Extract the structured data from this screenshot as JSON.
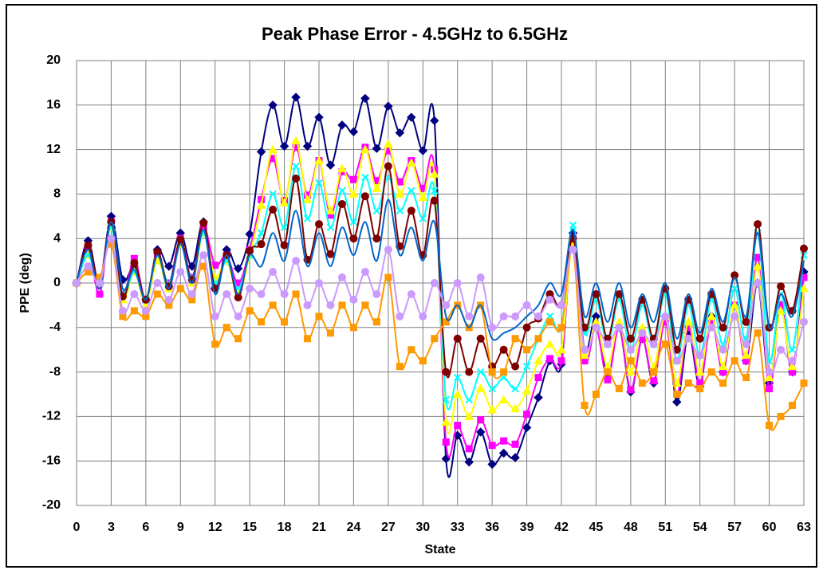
{
  "chart_data": {
    "type": "line",
    "title": "Peak Phase Error - 4.5GHz to 6.5GHz",
    "x_label": "State",
    "y_label": "PPE (deg)",
    "x": [
      0,
      1,
      2,
      3,
      4,
      5,
      6,
      7,
      8,
      9,
      10,
      11,
      12,
      13,
      14,
      15,
      16,
      17,
      18,
      19,
      20,
      21,
      22,
      23,
      24,
      25,
      26,
      27,
      28,
      29,
      30,
      31,
      32,
      33,
      34,
      35,
      36,
      37,
      38,
      39,
      40,
      41,
      42,
      43,
      44,
      45,
      46,
      47,
      48,
      49,
      50,
      51,
      52,
      53,
      54,
      55,
      56,
      57,
      58,
      59,
      60,
      61,
      62,
      63
    ],
    "xlim": [
      0,
      63
    ],
    "xticks": [
      0,
      3,
      6,
      9,
      12,
      15,
      18,
      21,
      24,
      27,
      30,
      33,
      36,
      39,
      42,
      45,
      48,
      51,
      54,
      57,
      60,
      63
    ],
    "ylim": [
      -20,
      20
    ],
    "yticks": [
      -20,
      -16,
      -12,
      -8,
      -4,
      0,
      4,
      8,
      12,
      16,
      20
    ],
    "grid": true,
    "series": [
      {
        "color": "#000080",
        "marker": "diamond",
        "values": [
          0,
          3.8,
          0,
          6,
          0.3,
          1.5,
          -1.5,
          3,
          1.5,
          4.5,
          1.5,
          5.5,
          -0.5,
          3,
          1.3,
          4.4,
          11.8,
          16,
          12.3,
          16.7,
          12.3,
          14.9,
          10.6,
          14.2,
          13.6,
          16.6,
          12.1,
          15.9,
          13.5,
          14.9,
          11.9,
          14.6,
          -15.8,
          -13.7,
          -16.1,
          -13.4,
          -16.3,
          -15.3,
          -15.7,
          -13,
          -10.3,
          -7,
          -7.3,
          4.5,
          -6,
          -3,
          -8.5,
          -4,
          -9.8,
          -5,
          -9,
          -3,
          -10.7,
          -4.5,
          -9.3,
          -3,
          -8,
          -2,
          -7,
          0,
          -9,
          -2,
          -8,
          1
        ]
      },
      {
        "color": "#ff00ff",
        "marker": "square",
        "values": [
          0,
          3,
          -1,
          5.5,
          -1,
          2.2,
          -1.5,
          2.5,
          0,
          4,
          0.5,
          5,
          1.6,
          2.5,
          0,
          3,
          7.5,
          11.2,
          7.4,
          12.2,
          7.9,
          11,
          6.1,
          10,
          9.3,
          12.2,
          9.2,
          11.9,
          9.1,
          11,
          8.5,
          10.2,
          -14.3,
          -12.8,
          -14.9,
          -12.3,
          -14.6,
          -14.2,
          -14.5,
          -11.8,
          -8.5,
          -6.8,
          -7,
          4,
          -7,
          -4,
          -8.7,
          -4,
          -9.6,
          -5,
          -8.8,
          -3.5,
          -10,
          -4,
          -9,
          -3.5,
          -8,
          -2,
          -7,
          2.3,
          -9.5,
          -2,
          -8,
          0.5
        ]
      },
      {
        "color": "#ffff00",
        "marker": "triangle",
        "values": [
          0,
          2.5,
          0,
          5,
          -1.5,
          1,
          -2,
          2,
          -0.5,
          3.5,
          0,
          4.5,
          0.5,
          2,
          -1,
          2.5,
          7,
          12,
          7.2,
          12.8,
          7.5,
          11,
          6.5,
          10.3,
          8,
          12,
          8.5,
          12.5,
          8,
          10.8,
          7.7,
          9.8,
          -12.5,
          -10,
          -12,
          -9.5,
          -11.4,
          -10.5,
          -11.3,
          -9.7,
          -7,
          -5.5,
          -6,
          3.5,
          -6.5,
          -3.5,
          -7.5,
          -3.5,
          -8,
          -4,
          -7.5,
          -3,
          -9,
          -3.5,
          -8,
          -3,
          -7.5,
          -2,
          -6.5,
          1.5,
          -8.5,
          -2.5,
          -7.5,
          -0.5
        ]
      },
      {
        "color": "#00ffff",
        "marker": "x",
        "values": [
          0,
          2.5,
          0,
          5,
          -1,
          1,
          -1.5,
          2.5,
          0,
          3.5,
          0.5,
          4.5,
          0,
          2,
          -0.5,
          2.5,
          4.5,
          8,
          5,
          10.5,
          5.8,
          9,
          5,
          8.3,
          5.5,
          9.5,
          6.5,
          9.5,
          6.5,
          8.3,
          5.8,
          8.3,
          -10.5,
          -8.5,
          -10.5,
          -8,
          -9.5,
          -8.5,
          -9.5,
          -7.5,
          -5,
          -3,
          -4,
          5.2,
          -4.5,
          -1.5,
          -5.5,
          -1.5,
          -6,
          -2,
          -5.5,
          -1,
          -7,
          -2,
          -6.5,
          -1.5,
          -5.5,
          -0.5,
          -5,
          4.5,
          -7,
          -1,
          -6,
          2.5
        ]
      },
      {
        "color": "#800000",
        "marker": "circle",
        "values": [
          0,
          3.4,
          0,
          5.5,
          -1.2,
          1.8,
          -1.5,
          2.8,
          -0.3,
          3.9,
          0.3,
          5.4,
          -0.5,
          2.5,
          -1.3,
          2.9,
          3.5,
          6.6,
          3.4,
          9.4,
          2.1,
          5.3,
          2.6,
          7.1,
          4,
          7.8,
          4,
          10.5,
          3.3,
          6.5,
          2.5,
          7.4,
          -8,
          -5,
          -8,
          -5,
          -7.5,
          -6,
          -7.5,
          -4,
          -3.2,
          -1,
          -2,
          4,
          -4,
          -1,
          -5,
          -1,
          -5,
          -1.5,
          -5,
          -0.5,
          -6,
          -1.5,
          -5,
          -1,
          -4,
          0.7,
          -3.5,
          5.3,
          -4,
          -0.3,
          -2.5,
          3.1
        ]
      },
      {
        "color": "#ff9900",
        "marker": "square",
        "values": [
          0,
          1,
          0.5,
          3.5,
          -3,
          -2.5,
          -3,
          -1,
          -2,
          -0.5,
          -1.5,
          1.5,
          -5.5,
          -4,
          -5,
          -2.5,
          -3.5,
          -2,
          -3.5,
          -1,
          -5,
          -3,
          -4.5,
          -2,
          -4,
          -2,
          -3.5,
          0.5,
          -7.5,
          -6,
          -7,
          -5,
          -3.5,
          -2,
          -4,
          -2,
          -8,
          -8,
          -5,
          -6,
          -5,
          -3.5,
          -4,
          3,
          -11,
          -10,
          -8,
          -9.5,
          -7,
          -9,
          -8,
          -5.5,
          -10,
          -9,
          -9.5,
          -8,
          -9,
          -7,
          -8.5,
          -4.5,
          -12.8,
          -12,
          -11,
          -9
        ]
      },
      {
        "color": "#0066cc",
        "marker": "none",
        "values": [
          0,
          3,
          -0.5,
          5.5,
          -0.5,
          1.2,
          -1.5,
          2.5,
          -0.5,
          3.5,
          0,
          4.8,
          -1,
          2.5,
          -1,
          2.5,
          1.5,
          4.5,
          2,
          6.5,
          1.5,
          4.5,
          1.5,
          5,
          2.5,
          5.5,
          2,
          7.5,
          2.5,
          5,
          2,
          5.5,
          -3,
          -2,
          -4,
          -2,
          -5,
          -4.5,
          -4,
          -3,
          -2,
          0,
          -1,
          4.8,
          -3,
          0,
          -3.5,
          0,
          -4,
          -1,
          -3.5,
          0,
          -5,
          -1,
          -4.5,
          -0.5,
          -3.5,
          0.5,
          -3,
          4.5,
          -4,
          -1,
          -3,
          2
        ]
      },
      {
        "color": "#cc99ff",
        "marker": "circle",
        "values": [
          0,
          1.5,
          0,
          4,
          -2.5,
          -1,
          -2.5,
          0,
          -1.5,
          1,
          -1,
          2.5,
          -3,
          -1,
          -3,
          -0.5,
          -1,
          1,
          -1,
          2,
          -2,
          0,
          -2,
          0.5,
          -1.5,
          1,
          -1,
          3,
          -3,
          -1,
          -3,
          0,
          -2,
          0,
          -3,
          0.5,
          -4,
          -3,
          -3,
          -2,
          -3,
          -1.5,
          -2,
          3,
          -6,
          -4,
          -5.5,
          -4,
          -6,
          -4.5,
          -5.5,
          -3,
          -7,
          -5,
          -6.5,
          -4,
          -6,
          -3,
          -5.5,
          0,
          -8,
          -6,
          -7,
          -3.5
        ]
      }
    ]
  }
}
